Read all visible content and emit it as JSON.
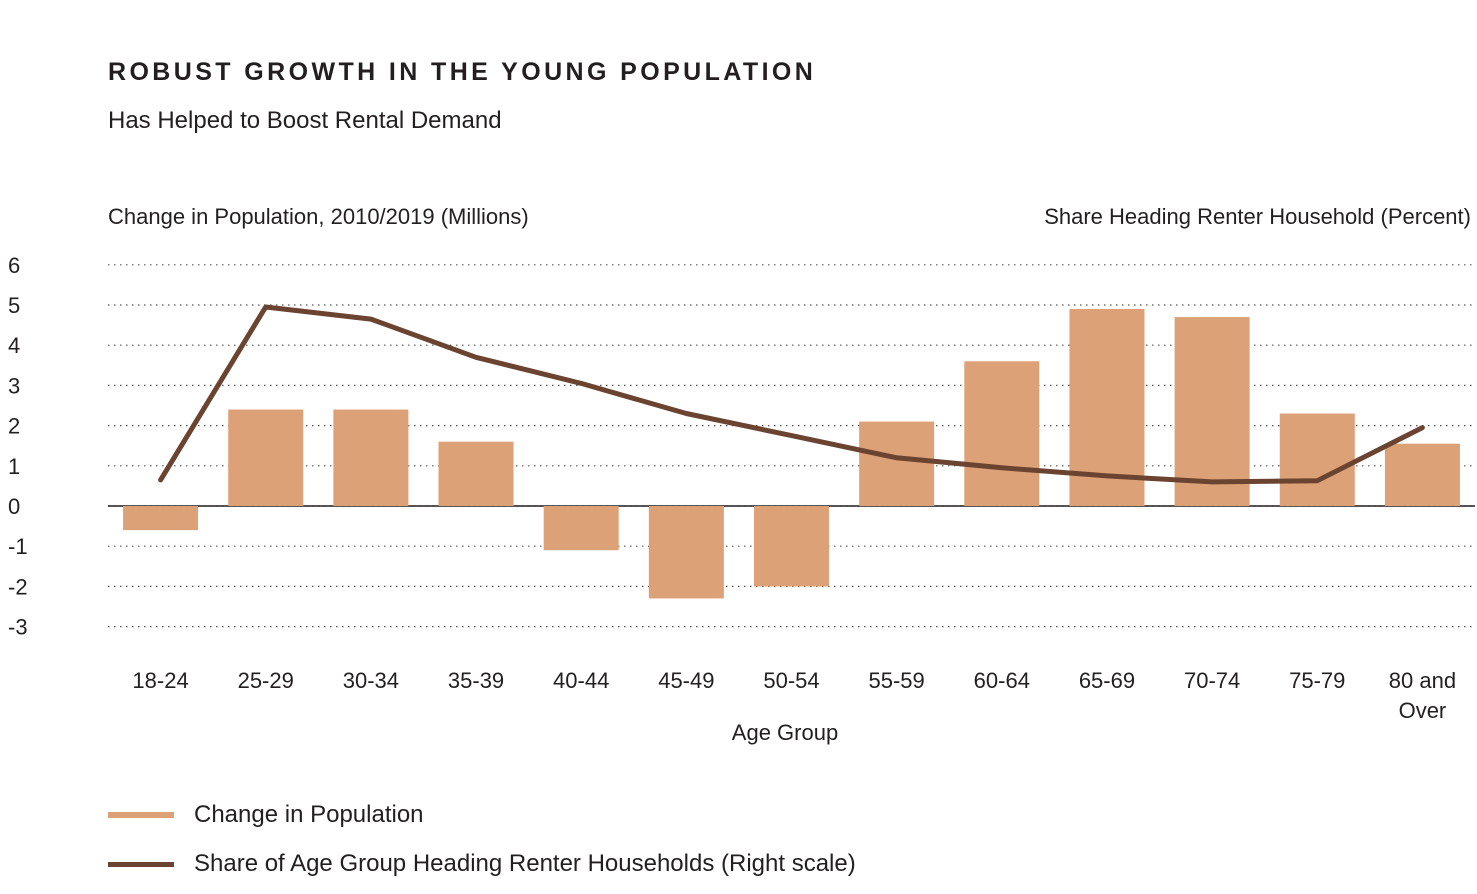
{
  "header": {
    "title": "ROBUST GROWTH IN THE YOUNG POPULATION",
    "subtitle": "Has Helped to Boost Rental Demand"
  },
  "chart_data": {
    "type": "bar",
    "xlabel": "Age Group",
    "ylabel_left": "Change in Population, 2010/2019 (Millions)",
    "ylabel_right": "Share Heading Renter Household (Percent)",
    "ylim": [
      -3,
      6
    ],
    "yticks": [
      6,
      5,
      4,
      3,
      2,
      1,
      0,
      -1,
      -2,
      -3
    ],
    "grid": "dotted horizontal",
    "categories": [
      "18-24",
      "25-29",
      "30-34",
      "35-39",
      "40-44",
      "45-49",
      "50-54",
      "55-59",
      "60-64",
      "65-69",
      "70-74",
      "75-79",
      "80 and Over"
    ],
    "series": [
      {
        "name": "Change in Population",
        "type": "bar",
        "color": "#dca177",
        "values": [
          -0.6,
          2.4,
          2.4,
          1.6,
          -1.1,
          -2.3,
          -2.0,
          2.1,
          3.6,
          4.9,
          4.7,
          2.3,
          1.55
        ]
      },
      {
        "name": "Share of Age Group Heading Renter Households (Right scale)",
        "type": "line",
        "color": "#6b4431",
        "note": "Right scale (percent); plotted against left axis positions as shown",
        "values": [
          0.65,
          4.95,
          4.65,
          3.7,
          3.05,
          2.3,
          1.75,
          1.2,
          0.95,
          0.75,
          0.6,
          0.63,
          1.95
        ]
      }
    ]
  }
}
